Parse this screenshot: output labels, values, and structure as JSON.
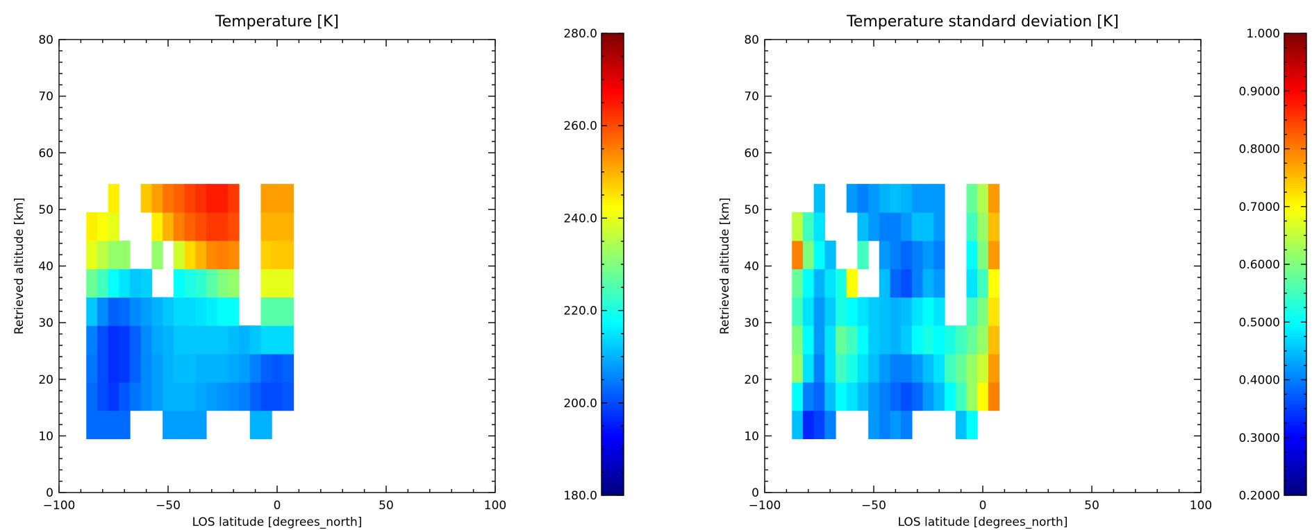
{
  "chart_data": [
    {
      "type": "heatmap",
      "title": "Temperature [K]",
      "xlabel": "LOS latitude [degrees_north]",
      "ylabel": "Retrieved altitude [km]",
      "xlim": [
        -100,
        100
      ],
      "ylim": [
        0,
        80
      ],
      "x_ticks": [
        "−100",
        "−50",
        "0",
        "50",
        "100"
      ],
      "y_ticks": [
        "0",
        "10",
        "20",
        "30",
        "40",
        "50",
        "60",
        "70",
        "80"
      ],
      "colormap": "jet",
      "colorbar_range": [
        180,
        280
      ],
      "colorbar_ticks": [
        "180.0",
        "200.0",
        "220.0",
        "240.0",
        "260.0",
        "280.0"
      ],
      "x_values": [
        -85,
        -80,
        -75,
        -70,
        -65,
        -60,
        -55,
        -50,
        -45,
        -40,
        -35,
        -30,
        -25,
        -20,
        -15,
        -10,
        -5,
        0,
        5
      ],
      "y_values": [
        12,
        17,
        22,
        27,
        32,
        37,
        42,
        47,
        52
      ],
      "values": [
        [
          203,
          203,
          203,
          203,
          null,
          null,
          null,
          208,
          208,
          208,
          208,
          null,
          null,
          null,
          null,
          210,
          210,
          null,
          null
        ],
        [
          203,
          200,
          198,
          201,
          204,
          206,
          208,
          210,
          210,
          210,
          209,
          208,
          207,
          206,
          205,
          202,
          200,
          200,
          201
        ],
        [
          204,
          200,
          197,
          198,
          202,
          206,
          208,
          210,
          211,
          211,
          210,
          210,
          210,
          209,
          208,
          205,
          202,
          201,
          202
        ],
        [
          205,
          200,
          197,
          198,
          202,
          206,
          209,
          210,
          212,
          212,
          212,
          212,
          212,
          211,
          210,
          212,
          214,
          214,
          214
        ],
        [
          212,
          206,
          202,
          203,
          206,
          208,
          210,
          212,
          214,
          214,
          215,
          216,
          218,
          218,
          null,
          null,
          226,
          226,
          226
        ],
        [
          228,
          224,
          218,
          215,
          212,
          213,
          null,
          null,
          218,
          220,
          222,
          226,
          230,
          232,
          null,
          null,
          240,
          240,
          240
        ],
        [
          240,
          236,
          232,
          232,
          null,
          null,
          232,
          null,
          238,
          246,
          250,
          254,
          255,
          254,
          null,
          null,
          247,
          248,
          248
        ],
        [
          244,
          242,
          240,
          null,
          null,
          null,
          244,
          250,
          255,
          258,
          260,
          262,
          262,
          260,
          null,
          null,
          250,
          250,
          250
        ],
        [
          null,
          null,
          244,
          null,
          null,
          248,
          252,
          256,
          258,
          261,
          263,
          265,
          265,
          262,
          null,
          null,
          252,
          252,
          252
        ]
      ]
    },
    {
      "type": "heatmap",
      "title": "Temperature standard deviation [K]",
      "xlabel": "LOS latitude [degrees_north]",
      "ylabel": "Retrieved altitude [km]",
      "xlim": [
        -100,
        100
      ],
      "ylim": [
        0,
        80
      ],
      "x_ticks": [
        "−100",
        "−50",
        "0",
        "50",
        "100"
      ],
      "y_ticks": [
        "0",
        "10",
        "20",
        "30",
        "40",
        "50",
        "60",
        "70",
        "80"
      ],
      "colormap": "jet",
      "colorbar_range": [
        0.2,
        1.0
      ],
      "colorbar_ticks": [
        "0.2000",
        "0.3000",
        "0.4000",
        "0.5000",
        "0.6000",
        "0.7000",
        "0.8000",
        "0.9000",
        "1.000"
      ],
      "x_values": [
        -85,
        -80,
        -75,
        -70,
        -65,
        -60,
        -55,
        -50,
        -45,
        -40,
        -35,
        -30,
        -25,
        -20,
        -15,
        -10,
        -5,
        0,
        5
      ],
      "y_values": [
        12,
        17,
        22,
        27,
        32,
        37,
        42,
        47,
        52
      ],
      "values": [
        [
          0.45,
          0.33,
          0.35,
          0.4,
          null,
          null,
          null,
          0.42,
          0.4,
          0.42,
          0.4,
          null,
          null,
          null,
          null,
          0.45,
          0.5,
          null,
          null
        ],
        [
          0.5,
          0.4,
          0.38,
          0.45,
          0.5,
          0.48,
          0.45,
          0.42,
          0.4,
          0.38,
          0.36,
          0.38,
          0.42,
          0.45,
          0.5,
          0.55,
          0.62,
          0.7,
          0.8
        ],
        [
          0.62,
          0.48,
          0.4,
          0.48,
          0.55,
          0.52,
          0.48,
          0.45,
          0.42,
          0.4,
          0.4,
          0.42,
          0.45,
          0.48,
          0.55,
          0.58,
          0.62,
          0.66,
          0.78
        ],
        [
          0.6,
          0.5,
          0.42,
          0.48,
          0.58,
          0.55,
          0.5,
          0.46,
          0.45,
          0.44,
          0.46,
          0.5,
          0.52,
          0.5,
          0.52,
          0.55,
          0.58,
          0.62,
          0.75
        ],
        [
          0.55,
          0.48,
          0.42,
          0.46,
          0.52,
          0.5,
          0.48,
          0.46,
          0.45,
          0.44,
          0.45,
          0.48,
          0.5,
          0.48,
          null,
          null,
          0.55,
          0.6,
          0.72
        ],
        [
          0.58,
          0.5,
          0.44,
          0.48,
          0.52,
          0.7,
          null,
          null,
          0.45,
          0.38,
          0.36,
          0.4,
          0.44,
          0.42,
          null,
          null,
          0.48,
          0.55,
          0.7
        ],
        [
          0.8,
          0.6,
          0.5,
          0.45,
          null,
          null,
          0.55,
          null,
          0.42,
          0.4,
          0.38,
          0.4,
          0.42,
          0.4,
          null,
          null,
          0.5,
          0.6,
          0.78
        ],
        [
          0.65,
          0.55,
          0.48,
          null,
          null,
          null,
          0.45,
          0.42,
          0.4,
          0.4,
          0.42,
          0.45,
          0.45,
          0.42,
          null,
          null,
          0.55,
          0.62,
          0.75
        ],
        [
          null,
          null,
          0.45,
          null,
          null,
          0.42,
          0.4,
          0.42,
          0.44,
          0.45,
          0.44,
          0.42,
          0.42,
          0.42,
          null,
          null,
          0.58,
          0.64,
          0.78
        ]
      ]
    }
  ]
}
